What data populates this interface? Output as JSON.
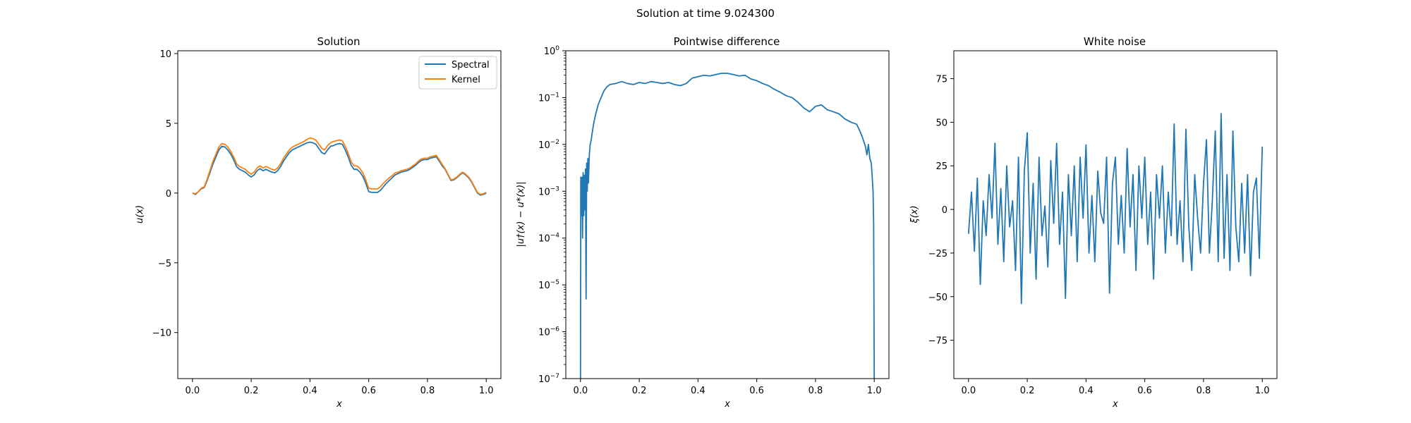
{
  "figure": {
    "suptitle": "Solution at time 9.024300"
  },
  "chart_data": [
    {
      "type": "line",
      "title": "Solution",
      "xlabel": "x",
      "ylabel": "u(x)",
      "xlim": [
        -0.05,
        1.05
      ],
      "ylim": [
        -13.3,
        10.2
      ],
      "xticks": [
        0.0,
        0.2,
        0.4,
        0.6,
        0.8,
        1.0
      ],
      "xtick_labels": [
        "0.0",
        "0.2",
        "0.4",
        "0.6",
        "0.8",
        "1.0"
      ],
      "yticks": [
        -10,
        -5,
        0,
        5,
        10
      ],
      "ytick_labels": [
        "−10",
        "−5",
        "0",
        "5",
        "10"
      ],
      "grid": false,
      "legend": "top-right",
      "series": [
        {
          "name": "Spectral",
          "color": "#1f77b4",
          "x": [
            0.0,
            0.01,
            0.02,
            0.03,
            0.04,
            0.05,
            0.06,
            0.07,
            0.08,
            0.09,
            0.1,
            0.11,
            0.12,
            0.13,
            0.14,
            0.15,
            0.16,
            0.17,
            0.18,
            0.19,
            0.2,
            0.21,
            0.22,
            0.23,
            0.24,
            0.25,
            0.26,
            0.27,
            0.28,
            0.29,
            0.3,
            0.31,
            0.32,
            0.33,
            0.34,
            0.35,
            0.36,
            0.37,
            0.38,
            0.39,
            0.4,
            0.41,
            0.42,
            0.43,
            0.44,
            0.45,
            0.46,
            0.47,
            0.48,
            0.49,
            0.5,
            0.51,
            0.52,
            0.53,
            0.54,
            0.55,
            0.56,
            0.57,
            0.58,
            0.59,
            0.6,
            0.61,
            0.62,
            0.63,
            0.64,
            0.65,
            0.66,
            0.67,
            0.68,
            0.69,
            0.7,
            0.71,
            0.72,
            0.73,
            0.74,
            0.75,
            0.76,
            0.77,
            0.78,
            0.79,
            0.8,
            0.81,
            0.82,
            0.83,
            0.84,
            0.85,
            0.86,
            0.87,
            0.88,
            0.89,
            0.9,
            0.91,
            0.92,
            0.93,
            0.94,
            0.95,
            0.96,
            0.97,
            0.98,
            0.99,
            1.0
          ],
          "y": [
            0.0,
            -0.1,
            0.1,
            0.3,
            0.4,
            0.9,
            1.5,
            2.1,
            2.6,
            3.1,
            3.35,
            3.3,
            3.1,
            2.8,
            2.4,
            1.9,
            1.7,
            1.6,
            1.5,
            1.3,
            1.15,
            1.3,
            1.6,
            1.75,
            1.6,
            1.7,
            1.6,
            1.5,
            1.45,
            1.6,
            1.9,
            2.3,
            2.6,
            2.9,
            3.1,
            3.2,
            3.3,
            3.4,
            3.5,
            3.6,
            3.65,
            3.6,
            3.5,
            3.2,
            2.9,
            2.8,
            3.1,
            3.35,
            3.4,
            3.5,
            3.55,
            3.5,
            3.1,
            2.6,
            2.0,
            1.7,
            1.7,
            1.5,
            1.2,
            0.7,
            0.1,
            0.05,
            0.05,
            0.05,
            0.2,
            0.45,
            0.7,
            0.9,
            1.1,
            1.3,
            1.4,
            1.5,
            1.55,
            1.6,
            1.7,
            1.85,
            2.0,
            2.2,
            2.35,
            2.4,
            2.4,
            2.5,
            2.55,
            2.6,
            2.3,
            1.95,
            1.7,
            1.3,
            0.9,
            0.95,
            1.1,
            1.3,
            1.45,
            1.3,
            1.1,
            0.8,
            0.4,
            0.0,
            -0.15,
            -0.1,
            0.0
          ]
        },
        {
          "name": "Kernel",
          "color": "#ff7f0e",
          "x": [
            0.0,
            0.01,
            0.02,
            0.03,
            0.04,
            0.05,
            0.06,
            0.07,
            0.08,
            0.09,
            0.1,
            0.11,
            0.12,
            0.13,
            0.14,
            0.15,
            0.16,
            0.17,
            0.18,
            0.19,
            0.2,
            0.21,
            0.22,
            0.23,
            0.24,
            0.25,
            0.26,
            0.27,
            0.28,
            0.29,
            0.3,
            0.31,
            0.32,
            0.33,
            0.34,
            0.35,
            0.36,
            0.37,
            0.38,
            0.39,
            0.4,
            0.41,
            0.42,
            0.43,
            0.44,
            0.45,
            0.46,
            0.47,
            0.48,
            0.49,
            0.5,
            0.51,
            0.52,
            0.53,
            0.54,
            0.55,
            0.56,
            0.57,
            0.58,
            0.59,
            0.6,
            0.61,
            0.62,
            0.63,
            0.64,
            0.65,
            0.66,
            0.67,
            0.68,
            0.69,
            0.7,
            0.71,
            0.72,
            0.73,
            0.74,
            0.75,
            0.76,
            0.77,
            0.78,
            0.79,
            0.8,
            0.81,
            0.82,
            0.83,
            0.84,
            0.85,
            0.86,
            0.87,
            0.88,
            0.89,
            0.9,
            0.91,
            0.92,
            0.93,
            0.94,
            0.95,
            0.96,
            0.97,
            0.98,
            0.99,
            1.0
          ],
          "y": [
            0.0,
            -0.05,
            0.1,
            0.35,
            0.45,
            1.0,
            1.65,
            2.3,
            2.8,
            3.3,
            3.55,
            3.5,
            3.3,
            3.0,
            2.6,
            2.1,
            1.9,
            1.8,
            1.7,
            1.5,
            1.35,
            1.5,
            1.8,
            1.95,
            1.8,
            1.9,
            1.8,
            1.7,
            1.65,
            1.8,
            2.1,
            2.5,
            2.8,
            3.1,
            3.3,
            3.4,
            3.5,
            3.6,
            3.7,
            3.85,
            3.95,
            3.9,
            3.8,
            3.5,
            3.2,
            3.1,
            3.4,
            3.6,
            3.7,
            3.75,
            3.8,
            3.75,
            3.35,
            2.85,
            2.25,
            1.95,
            1.95,
            1.75,
            1.45,
            0.95,
            0.35,
            0.3,
            0.3,
            0.3,
            0.45,
            0.7,
            0.9,
            1.1,
            1.25,
            1.45,
            1.5,
            1.6,
            1.65,
            1.7,
            1.8,
            1.95,
            2.1,
            2.3,
            2.45,
            2.5,
            2.5,
            2.6,
            2.65,
            2.7,
            2.4,
            2.05,
            1.75,
            1.35,
            0.95,
            1.0,
            1.15,
            1.35,
            1.5,
            1.35,
            1.15,
            0.85,
            0.45,
            0.05,
            -0.1,
            -0.05,
            0.05
          ]
        }
      ]
    },
    {
      "type": "line",
      "title": "Pointwise difference",
      "xlabel": "x",
      "ylabel": "|u†(x) − u*(x)|",
      "yscale": "log",
      "xlim": [
        -0.05,
        1.05
      ],
      "ylim": [
        1e-07,
        1
      ],
      "xticks": [
        0.0,
        0.2,
        0.4,
        0.6,
        0.8,
        1.0
      ],
      "xtick_labels": [
        "0.0",
        "0.2",
        "0.4",
        "0.6",
        "0.8",
        "1.0"
      ],
      "yticks": [
        1e-07,
        1e-06,
        1e-05,
        0.0001,
        0.001,
        0.01,
        0.1,
        1
      ],
      "ytick_mantissa": "10",
      "ytick_exponents": [
        "−7",
        "−6",
        "−5",
        "−4",
        "−3",
        "−2",
        "−1",
        "0"
      ],
      "grid": false,
      "series": [
        {
          "color": "#1f77b4",
          "x": [
            0.0,
            0.001,
            0.003,
            0.005,
            0.007,
            0.009,
            0.011,
            0.013,
            0.015,
            0.017,
            0.019,
            0.021,
            0.023,
            0.025,
            0.027,
            0.03,
            0.033,
            0.036,
            0.04,
            0.045,
            0.05,
            0.06,
            0.07,
            0.08,
            0.09,
            0.1,
            0.12,
            0.14,
            0.16,
            0.18,
            0.2,
            0.22,
            0.24,
            0.26,
            0.28,
            0.3,
            0.32,
            0.34,
            0.36,
            0.38,
            0.4,
            0.42,
            0.44,
            0.46,
            0.48,
            0.5,
            0.52,
            0.54,
            0.56,
            0.58,
            0.6,
            0.62,
            0.64,
            0.66,
            0.68,
            0.7,
            0.72,
            0.74,
            0.76,
            0.78,
            0.8,
            0.82,
            0.84,
            0.86,
            0.88,
            0.9,
            0.92,
            0.94,
            0.95,
            0.96,
            0.97,
            0.975,
            0.98,
            0.985,
            0.99,
            0.993,
            0.996,
            0.998,
            1.0
          ],
          "y": [
            1e-07,
            0.002,
            0.0003,
            0.002,
            0.0001,
            0.0025,
            0.0003,
            0.0022,
            0.0004,
            0.003,
            5e-06,
            0.004,
            0.001,
            0.005,
            0.0015,
            0.006,
            0.01,
            0.012,
            0.018,
            0.028,
            0.04,
            0.07,
            0.1,
            0.14,
            0.17,
            0.19,
            0.2,
            0.22,
            0.2,
            0.19,
            0.21,
            0.2,
            0.22,
            0.21,
            0.2,
            0.21,
            0.19,
            0.18,
            0.2,
            0.26,
            0.28,
            0.3,
            0.29,
            0.31,
            0.33,
            0.33,
            0.31,
            0.29,
            0.3,
            0.25,
            0.23,
            0.2,
            0.18,
            0.15,
            0.13,
            0.11,
            0.1,
            0.08,
            0.06,
            0.05,
            0.065,
            0.07,
            0.055,
            0.05,
            0.045,
            0.035,
            0.03,
            0.027,
            0.02,
            0.014,
            0.009,
            0.006,
            0.01,
            0.005,
            0.004,
            0.002,
            0.001,
            0.0002,
            1e-07
          ]
        }
      ]
    },
    {
      "type": "line",
      "title": "White noise",
      "xlabel": "x",
      "ylabel": "ξ(x)",
      "xlim": [
        -0.05,
        1.05
      ],
      "ylim": [
        -97,
        91
      ],
      "xticks": [
        0.0,
        0.2,
        0.4,
        0.6,
        0.8,
        1.0
      ],
      "xtick_labels": [
        "0.0",
        "0.2",
        "0.4",
        "0.6",
        "0.8",
        "1.0"
      ],
      "yticks": [
        -75,
        -50,
        -25,
        0,
        25,
        50,
        75
      ],
      "ytick_labels": [
        "−75",
        "−50",
        "−25",
        "0",
        "25",
        "50",
        "75"
      ],
      "grid": false,
      "series": [
        {
          "color": "#1f77b4",
          "x": [
            0.0,
            0.01,
            0.02,
            0.03,
            0.04,
            0.05,
            0.06,
            0.07,
            0.08,
            0.09,
            0.1,
            0.11,
            0.12,
            0.13,
            0.14,
            0.15,
            0.16,
            0.17,
            0.18,
            0.19,
            0.2,
            0.21,
            0.22,
            0.23,
            0.24,
            0.25,
            0.26,
            0.27,
            0.28,
            0.29,
            0.3,
            0.31,
            0.32,
            0.33,
            0.34,
            0.35,
            0.36,
            0.37,
            0.38,
            0.39,
            0.4,
            0.41,
            0.42,
            0.43,
            0.44,
            0.45,
            0.46,
            0.47,
            0.48,
            0.49,
            0.5,
            0.51,
            0.52,
            0.53,
            0.54,
            0.55,
            0.56,
            0.57,
            0.58,
            0.59,
            0.6,
            0.61,
            0.62,
            0.63,
            0.64,
            0.65,
            0.66,
            0.67,
            0.68,
            0.69,
            0.7,
            0.71,
            0.72,
            0.73,
            0.74,
            0.75,
            0.76,
            0.77,
            0.78,
            0.79,
            0.8,
            0.81,
            0.82,
            0.83,
            0.84,
            0.85,
            0.86,
            0.87,
            0.88,
            0.89,
            0.9,
            0.91,
            0.92,
            0.93,
            0.94,
            0.95,
            0.96,
            0.97,
            0.98,
            0.99,
            1.0
          ],
          "y": [
            -14,
            10,
            -24,
            18,
            -43,
            5,
            -15,
            20,
            -5,
            38,
            -20,
            12,
            -30,
            25,
            -10,
            5,
            -35,
            30,
            -54,
            22,
            44,
            -25,
            15,
            -40,
            30,
            -15,
            2,
            -33,
            28,
            -8,
            38,
            -20,
            10,
            -51,
            20,
            -15,
            25,
            -30,
            30,
            -5,
            37,
            -25,
            8,
            -30,
            22,
            -2,
            -8,
            30,
            -48,
            15,
            30,
            -20,
            8,
            -25,
            35,
            -10,
            20,
            -35,
            25,
            -5,
            30,
            -20,
            10,
            -40,
            20,
            -5,
            25,
            -25,
            10,
            -15,
            49,
            -20,
            5,
            -30,
            46,
            -10,
            -35,
            20,
            -5,
            -25,
            15,
            40,
            -25,
            5,
            45,
            -30,
            55,
            -28,
            20,
            -35,
            45,
            -10,
            -30,
            15,
            -25,
            20,
            -38,
            10,
            18,
            -28,
            36
          ]
        }
      ]
    }
  ]
}
